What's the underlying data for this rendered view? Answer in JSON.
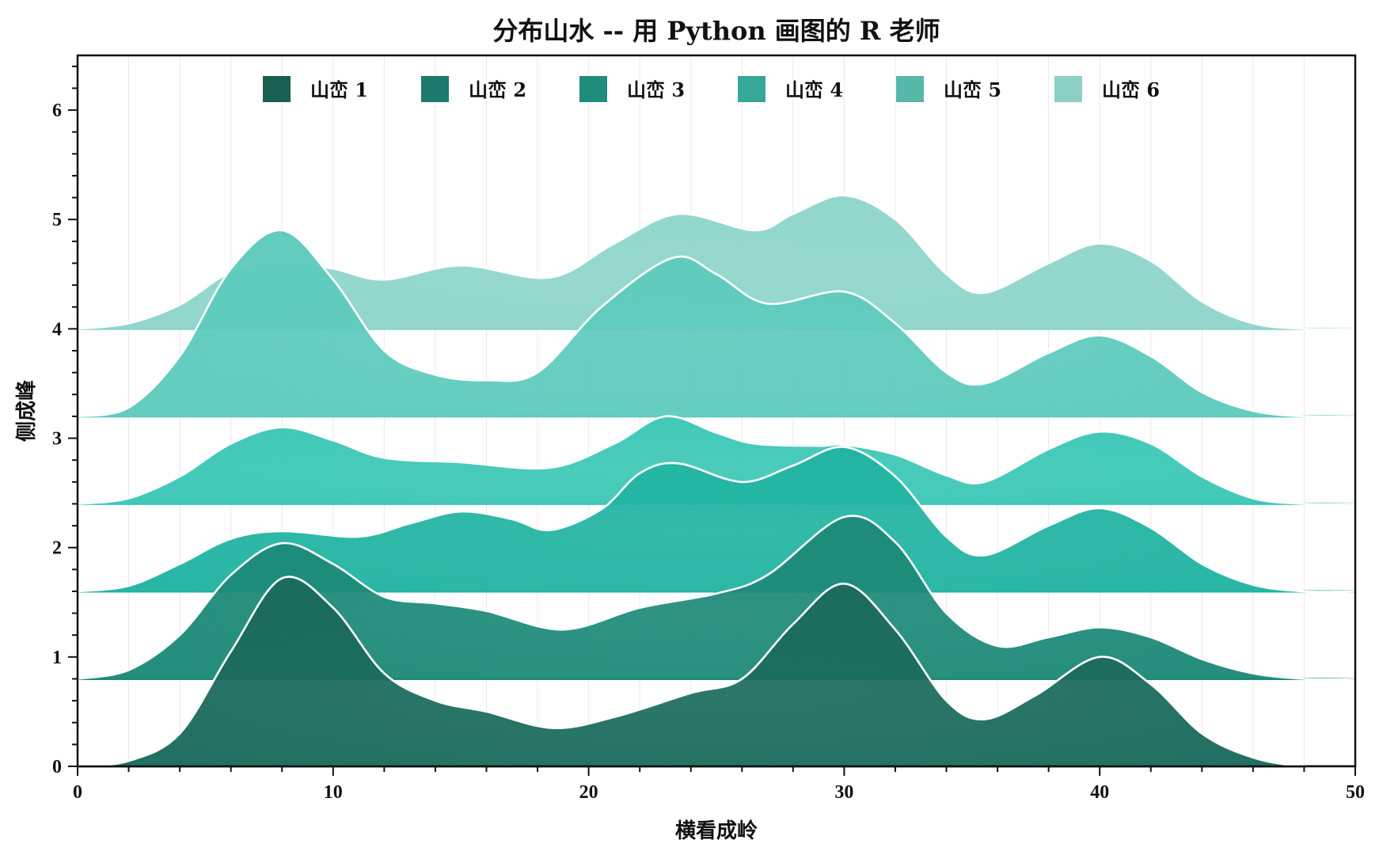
{
  "chart_data": {
    "type": "area",
    "subtype": "ridgeline",
    "title": "分布山水 -- 用 Python 画图的 R 老师",
    "xlabel": "横看成岭",
    "ylabel": "侧成峰",
    "xlim": [
      0,
      50
    ],
    "ylim": [
      0,
      6.5
    ],
    "x_ticks": [
      0,
      10,
      20,
      30,
      40,
      50
    ],
    "y_ticks": [
      0,
      1,
      2,
      3,
      4,
      5,
      6
    ],
    "grid": true,
    "legend_position": "top-center, horizontal",
    "series": [
      {
        "name": "山峦 1",
        "baseline": 0.0,
        "color": "#1b6b5c",
        "line_color": "#ffffff",
        "points": [
          [
            0,
            0.0
          ],
          [
            2,
            0.05
          ],
          [
            4,
            0.3
          ],
          [
            6,
            1.05
          ],
          [
            8,
            1.72
          ],
          [
            10,
            1.45
          ],
          [
            12,
            0.85
          ],
          [
            14,
            0.6
          ],
          [
            16,
            0.5
          ],
          [
            18.6,
            0.35
          ],
          [
            21,
            0.45
          ],
          [
            24,
            0.67
          ],
          [
            26,
            0.8
          ],
          [
            28,
            1.3
          ],
          [
            30,
            1.67
          ],
          [
            32,
            1.25
          ],
          [
            34,
            0.6
          ],
          [
            35.5,
            0.43
          ],
          [
            37.5,
            0.65
          ],
          [
            40,
            1.0
          ],
          [
            42,
            0.75
          ],
          [
            44,
            0.3
          ],
          [
            46,
            0.08
          ],
          [
            48,
            0.0
          ],
          [
            50,
            0.0
          ]
        ]
      },
      {
        "name": "山峦 2",
        "baseline": 0.8,
        "color": "#1e8a78",
        "line_color": "#ffffff",
        "points": [
          [
            0,
            0.8
          ],
          [
            2,
            0.88
          ],
          [
            4,
            1.2
          ],
          [
            6,
            1.75
          ],
          [
            8,
            2.04
          ],
          [
            10,
            1.85
          ],
          [
            12,
            1.55
          ],
          [
            14,
            1.49
          ],
          [
            16,
            1.42
          ],
          [
            19,
            1.25
          ],
          [
            22,
            1.45
          ],
          [
            25,
            1.58
          ],
          [
            27,
            1.75
          ],
          [
            30,
            2.28
          ],
          [
            32,
            2.05
          ],
          [
            34,
            1.4
          ],
          [
            36,
            1.1
          ],
          [
            38,
            1.18
          ],
          [
            40,
            1.27
          ],
          [
            42,
            1.18
          ],
          [
            44,
            0.98
          ],
          [
            46,
            0.85
          ],
          [
            48,
            0.8
          ],
          [
            50,
            0.8
          ]
        ]
      },
      {
        "name": "山峦 3",
        "baseline": 1.6,
        "color": "#22b4a2",
        "line_color": "#ffffff",
        "points": [
          [
            0,
            1.6
          ],
          [
            2,
            1.65
          ],
          [
            4,
            1.85
          ],
          [
            6,
            2.08
          ],
          [
            8,
            2.15
          ],
          [
            11,
            2.1
          ],
          [
            13,
            2.22
          ],
          [
            15,
            2.33
          ],
          [
            17,
            2.26
          ],
          [
            18.5,
            2.16
          ],
          [
            20.5,
            2.35
          ],
          [
            22,
            2.68
          ],
          [
            23.5,
            2.77
          ],
          [
            26,
            2.6
          ],
          [
            28,
            2.75
          ],
          [
            30,
            2.92
          ],
          [
            32,
            2.65
          ],
          [
            34,
            2.1
          ],
          [
            35.5,
            1.93
          ],
          [
            38,
            2.2
          ],
          [
            40,
            2.36
          ],
          [
            42,
            2.18
          ],
          [
            44,
            1.85
          ],
          [
            46,
            1.66
          ],
          [
            48,
            1.6
          ],
          [
            50,
            1.6
          ]
        ]
      },
      {
        "name": "山峦 4",
        "baseline": 2.4,
        "color": "#3cc7b6",
        "line_color": "#ffffff",
        "points": [
          [
            0,
            2.4
          ],
          [
            2,
            2.45
          ],
          [
            4,
            2.65
          ],
          [
            6,
            2.95
          ],
          [
            8,
            3.1
          ],
          [
            10,
            2.98
          ],
          [
            12,
            2.82
          ],
          [
            15,
            2.78
          ],
          [
            18.5,
            2.73
          ],
          [
            21,
            2.95
          ],
          [
            23,
            3.2
          ],
          [
            25,
            3.05
          ],
          [
            26.5,
            2.95
          ],
          [
            29,
            2.93
          ],
          [
            30,
            2.94
          ],
          [
            32,
            2.85
          ],
          [
            34,
            2.66
          ],
          [
            35.5,
            2.6
          ],
          [
            38,
            2.9
          ],
          [
            40,
            3.06
          ],
          [
            42,
            2.95
          ],
          [
            44,
            2.65
          ],
          [
            46,
            2.45
          ],
          [
            48,
            2.4
          ],
          [
            50,
            2.4
          ]
        ]
      },
      {
        "name": "山峦 5",
        "baseline": 3.2,
        "color": "#5ecbbd",
        "line_color": "#ffffff",
        "points": [
          [
            0,
            3.2
          ],
          [
            2,
            3.28
          ],
          [
            4,
            3.75
          ],
          [
            6,
            4.55
          ],
          [
            8,
            4.9
          ],
          [
            10,
            4.45
          ],
          [
            12,
            3.8
          ],
          [
            14,
            3.58
          ],
          [
            16,
            3.53
          ],
          [
            18,
            3.6
          ],
          [
            20.5,
            4.2
          ],
          [
            23.3,
            4.65
          ],
          [
            25,
            4.5
          ],
          [
            27,
            4.23
          ],
          [
            30,
            4.34
          ],
          [
            32,
            4.05
          ],
          [
            34,
            3.6
          ],
          [
            35.5,
            3.5
          ],
          [
            38,
            3.78
          ],
          [
            40,
            3.94
          ],
          [
            42,
            3.75
          ],
          [
            44,
            3.42
          ],
          [
            46,
            3.25
          ],
          [
            48,
            3.2
          ],
          [
            50,
            3.2
          ]
        ]
      },
      {
        "name": "山峦 6",
        "baseline": 4.0,
        "color": "#8ed5ca",
        "line_color": "#ffffff",
        "points": [
          [
            0,
            4.0
          ],
          [
            2,
            4.05
          ],
          [
            4,
            4.22
          ],
          [
            6,
            4.52
          ],
          [
            8,
            4.62
          ],
          [
            10,
            4.55
          ],
          [
            12,
            4.45
          ],
          [
            15,
            4.58
          ],
          [
            18.5,
            4.47
          ],
          [
            21,
            4.78
          ],
          [
            23.5,
            5.05
          ],
          [
            26.5,
            4.9
          ],
          [
            28,
            5.05
          ],
          [
            30,
            5.22
          ],
          [
            32,
            5.0
          ],
          [
            34,
            4.5
          ],
          [
            35.5,
            4.33
          ],
          [
            38,
            4.6
          ],
          [
            40,
            4.78
          ],
          [
            42,
            4.62
          ],
          [
            44,
            4.25
          ],
          [
            46,
            4.05
          ],
          [
            48,
            4.0
          ],
          [
            50,
            4.0
          ]
        ]
      }
    ]
  },
  "legend": {
    "items": [
      {
        "label": "山峦 1",
        "color": "#1b5e52"
      },
      {
        "label": "山峦 2",
        "color": "#1e7a6c"
      },
      {
        "label": "山峦 3",
        "color": "#1f8c7c"
      },
      {
        "label": "山峦 4",
        "color": "#35a898"
      },
      {
        "label": "山峦 5",
        "color": "#56b8a9"
      },
      {
        "label": "山峦 6",
        "color": "#8ccfc4"
      }
    ]
  },
  "axes": {
    "x_tick_labels": [
      "0",
      "10",
      "20",
      "30",
      "40",
      "50"
    ],
    "y_tick_labels": [
      "0",
      "1",
      "2",
      "3",
      "4",
      "5",
      "6"
    ]
  }
}
